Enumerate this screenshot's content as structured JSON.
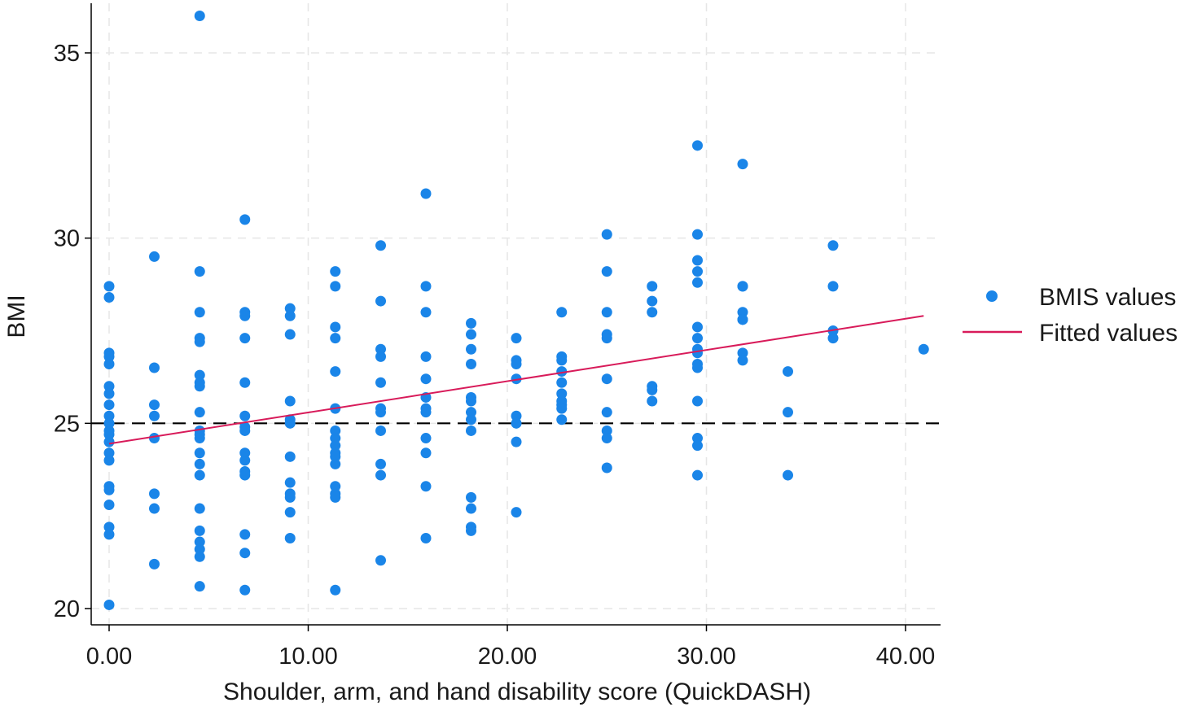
{
  "chart_data": {
    "type": "scatter",
    "xlabel": "Shoulder, arm, and hand disability score (QuickDASH)",
    "ylabel": "BMI",
    "xlim": [
      -1.2,
      42
    ],
    "ylim": [
      19.6,
      36.3
    ],
    "x_ticks": [
      0,
      10,
      20,
      30,
      40
    ],
    "x_tick_labels": [
      "0.00",
      "10.00",
      "20.00",
      "30.00",
      "40.00"
    ],
    "y_ticks": [
      20,
      25,
      30,
      35
    ],
    "y_tick_labels": [
      "20",
      "25",
      "30",
      "35"
    ],
    "grid": true,
    "legend_position": "right",
    "reference_line": {
      "y": 25,
      "style": "dashed",
      "color": "#000000"
    },
    "series": [
      {
        "name": "BMIS values",
        "kind": "scatter",
        "color": "#1a85e8",
        "points": [
          [
            0,
            28.7
          ],
          [
            0,
            28.4
          ],
          [
            0,
            26.9
          ],
          [
            0,
            26.8
          ],
          [
            0,
            26.6
          ],
          [
            0,
            26.0
          ],
          [
            0,
            25.8
          ],
          [
            0,
            25.5
          ],
          [
            0,
            25.2
          ],
          [
            0,
            25.0
          ],
          [
            0,
            24.8
          ],
          [
            0,
            24.7
          ],
          [
            0,
            24.5
          ],
          [
            0,
            24.2
          ],
          [
            0,
            24.0
          ],
          [
            0,
            23.3
          ],
          [
            0,
            23.2
          ],
          [
            0,
            22.8
          ],
          [
            0,
            22.2
          ],
          [
            0,
            22.0
          ],
          [
            0,
            20.1
          ],
          [
            2.27,
            29.5
          ],
          [
            2.27,
            26.5
          ],
          [
            2.27,
            25.5
          ],
          [
            2.27,
            25.2
          ],
          [
            2.27,
            24.6
          ],
          [
            2.27,
            23.1
          ],
          [
            2.27,
            22.7
          ],
          [
            2.27,
            21.2
          ],
          [
            4.55,
            36.0
          ],
          [
            4.55,
            29.1
          ],
          [
            4.55,
            28.0
          ],
          [
            4.55,
            27.3
          ],
          [
            4.55,
            27.2
          ],
          [
            4.55,
            26.3
          ],
          [
            4.55,
            26.1
          ],
          [
            4.55,
            26.0
          ],
          [
            4.55,
            25.3
          ],
          [
            4.55,
            24.8
          ],
          [
            4.55,
            24.7
          ],
          [
            4.55,
            24.6
          ],
          [
            4.55,
            24.2
          ],
          [
            4.55,
            23.9
          ],
          [
            4.55,
            23.6
          ],
          [
            4.55,
            22.7
          ],
          [
            4.55,
            22.1
          ],
          [
            4.55,
            21.8
          ],
          [
            4.55,
            21.6
          ],
          [
            4.55,
            21.4
          ],
          [
            4.55,
            20.6
          ],
          [
            6.82,
            30.5
          ],
          [
            6.82,
            28.0
          ],
          [
            6.82,
            27.9
          ],
          [
            6.82,
            27.3
          ],
          [
            6.82,
            26.1
          ],
          [
            6.82,
            25.2
          ],
          [
            6.82,
            24.9
          ],
          [
            6.82,
            24.8
          ],
          [
            6.82,
            24.2
          ],
          [
            6.82,
            24.0
          ],
          [
            6.82,
            23.7
          ],
          [
            6.82,
            23.6
          ],
          [
            6.82,
            22.0
          ],
          [
            6.82,
            21.5
          ],
          [
            6.82,
            20.5
          ],
          [
            9.09,
            28.1
          ],
          [
            9.09,
            27.9
          ],
          [
            9.09,
            27.4
          ],
          [
            9.09,
            25.6
          ],
          [
            9.09,
            25.1
          ],
          [
            9.09,
            25.0
          ],
          [
            9.09,
            24.1
          ],
          [
            9.09,
            23.4
          ],
          [
            9.09,
            23.1
          ],
          [
            9.09,
            23.0
          ],
          [
            9.09,
            22.6
          ],
          [
            9.09,
            21.9
          ],
          [
            11.36,
            29.1
          ],
          [
            11.36,
            28.7
          ],
          [
            11.36,
            27.6
          ],
          [
            11.36,
            27.3
          ],
          [
            11.36,
            26.4
          ],
          [
            11.36,
            25.4
          ],
          [
            11.36,
            24.8
          ],
          [
            11.36,
            24.6
          ],
          [
            11.36,
            24.4
          ],
          [
            11.36,
            24.2
          ],
          [
            11.36,
            24.1
          ],
          [
            11.36,
            23.9
          ],
          [
            11.36,
            23.3
          ],
          [
            11.36,
            23.1
          ],
          [
            11.36,
            23.0
          ],
          [
            11.36,
            20.5
          ],
          [
            13.64,
            29.8
          ],
          [
            13.64,
            28.3
          ],
          [
            13.64,
            27.0
          ],
          [
            13.64,
            26.8
          ],
          [
            13.64,
            26.1
          ],
          [
            13.64,
            25.4
          ],
          [
            13.64,
            25.3
          ],
          [
            13.64,
            24.8
          ],
          [
            13.64,
            23.9
          ],
          [
            13.64,
            23.6
          ],
          [
            13.64,
            21.3
          ],
          [
            15.91,
            31.2
          ],
          [
            15.91,
            28.7
          ],
          [
            15.91,
            28.0
          ],
          [
            15.91,
            26.8
          ],
          [
            15.91,
            26.2
          ],
          [
            15.91,
            25.7
          ],
          [
            15.91,
            25.4
          ],
          [
            15.91,
            25.3
          ],
          [
            15.91,
            24.6
          ],
          [
            15.91,
            24.2
          ],
          [
            15.91,
            23.3
          ],
          [
            15.91,
            21.9
          ],
          [
            18.18,
            27.7
          ],
          [
            18.18,
            27.4
          ],
          [
            18.18,
            27.0
          ],
          [
            18.18,
            26.6
          ],
          [
            18.18,
            25.7
          ],
          [
            18.18,
            25.6
          ],
          [
            18.18,
            25.3
          ],
          [
            18.18,
            25.1
          ],
          [
            18.18,
            24.8
          ],
          [
            18.18,
            23.0
          ],
          [
            18.18,
            22.7
          ],
          [
            18.18,
            22.2
          ],
          [
            18.18,
            22.1
          ],
          [
            20.45,
            27.3
          ],
          [
            20.45,
            26.7
          ],
          [
            20.45,
            26.6
          ],
          [
            20.45,
            26.2
          ],
          [
            20.45,
            25.2
          ],
          [
            20.45,
            25.0
          ],
          [
            20.45,
            24.5
          ],
          [
            20.45,
            22.6
          ],
          [
            22.73,
            28.0
          ],
          [
            22.73,
            26.8
          ],
          [
            22.73,
            26.7
          ],
          [
            22.73,
            26.4
          ],
          [
            22.73,
            26.1
          ],
          [
            22.73,
            25.8
          ],
          [
            22.73,
            25.6
          ],
          [
            22.73,
            25.5
          ],
          [
            22.73,
            25.4
          ],
          [
            22.73,
            25.1
          ],
          [
            25.0,
            30.1
          ],
          [
            25.0,
            29.1
          ],
          [
            25.0,
            28.0
          ],
          [
            25.0,
            27.4
          ],
          [
            25.0,
            27.3
          ],
          [
            25.0,
            26.2
          ],
          [
            25.0,
            25.3
          ],
          [
            25.0,
            24.8
          ],
          [
            25.0,
            24.6
          ],
          [
            25.0,
            23.8
          ],
          [
            27.27,
            28.7
          ],
          [
            27.27,
            28.3
          ],
          [
            27.27,
            28.0
          ],
          [
            27.27,
            26.0
          ],
          [
            27.27,
            25.9
          ],
          [
            27.27,
            25.6
          ],
          [
            29.55,
            32.5
          ],
          [
            29.55,
            30.1
          ],
          [
            29.55,
            29.4
          ],
          [
            29.55,
            29.1
          ],
          [
            29.55,
            28.8
          ],
          [
            29.55,
            27.6
          ],
          [
            29.55,
            27.3
          ],
          [
            29.55,
            27.0
          ],
          [
            29.55,
            26.9
          ],
          [
            29.55,
            26.6
          ],
          [
            29.55,
            26.5
          ],
          [
            29.55,
            25.6
          ],
          [
            29.55,
            24.6
          ],
          [
            29.55,
            24.4
          ],
          [
            29.55,
            23.6
          ],
          [
            31.82,
            32.0
          ],
          [
            31.82,
            28.7
          ],
          [
            31.82,
            28.7
          ],
          [
            31.82,
            28.0
          ],
          [
            31.82,
            27.8
          ],
          [
            31.82,
            27.8
          ],
          [
            31.82,
            26.9
          ],
          [
            31.82,
            26.7
          ],
          [
            34.09,
            26.4
          ],
          [
            34.09,
            25.3
          ],
          [
            34.09,
            23.6
          ],
          [
            36.36,
            29.8
          ],
          [
            36.36,
            28.7
          ],
          [
            36.36,
            27.5
          ],
          [
            36.36,
            27.3
          ],
          [
            40.91,
            27.0
          ]
        ]
      },
      {
        "name": "Fitted values",
        "kind": "line",
        "color": "#d81b5a",
        "x": [
          0,
          40.91
        ],
        "y": [
          24.45,
          27.9
        ]
      }
    ]
  }
}
